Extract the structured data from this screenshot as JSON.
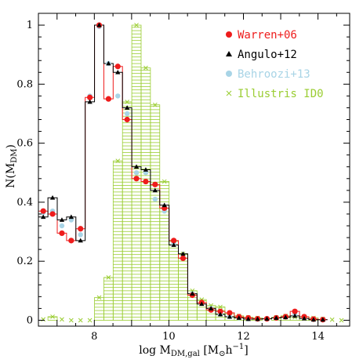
{
  "chart_data": {
    "type": "line",
    "xlabel": {
      "prefix": "log  M",
      "sub": "DM,gal",
      "bracket_open": "  [M",
      "sun_sub": "⊙",
      "h": "h",
      "h_sup": "−1",
      "bracket_close": "]"
    },
    "ylabel": {
      "prefix": "N(M",
      "sub": "DM",
      "suffix": ")"
    },
    "xlim": [
      6.5,
      14.85
    ],
    "ylim": [
      -0.02,
      1.04
    ],
    "xticks": [
      8,
      10,
      12,
      14
    ],
    "xtick_labels": [
      "8",
      "10",
      "12",
      "14"
    ],
    "yticks": [
      0,
      0.2,
      0.4,
      0.6,
      0.8,
      1
    ],
    "ytick_labels": [
      "0",
      "0.2",
      "0.4",
      "0.6",
      "0.8",
      "1"
    ],
    "legend_position": "top-right",
    "colors": {
      "warren": "#ee1c1c",
      "angulo": "#000000",
      "behroozi": "#a8d4e6",
      "illustris": "#9acd32"
    },
    "series": [
      {
        "name": "Warren+06",
        "marker": "circle",
        "x": [
          6.63,
          6.88,
          7.13,
          7.38,
          7.63,
          7.88,
          8.13,
          8.38,
          8.63,
          8.88,
          9.13,
          9.38,
          9.63,
          9.88,
          10.13,
          10.38,
          10.63,
          10.88,
          11.13,
          11.38,
          11.63,
          11.88,
          12.13,
          12.38,
          12.63,
          12.88,
          13.13,
          13.38,
          13.63,
          13.88,
          14.13
        ],
        "y": [
          0.37,
          0.36,
          0.295,
          0.27,
          0.31,
          0.755,
          1.0,
          0.75,
          0.86,
          0.68,
          0.48,
          0.47,
          0.46,
          0.38,
          0.27,
          0.21,
          0.085,
          0.06,
          0.035,
          0.03,
          0.025,
          0.012,
          0.008,
          0.005,
          0.005,
          0.008,
          0.012,
          0.03,
          0.012,
          0.004,
          0.002
        ]
      },
      {
        "name": "Angulo+12",
        "marker": "triangle",
        "x": [
          6.63,
          6.88,
          7.13,
          7.38,
          7.63,
          7.88,
          8.13,
          8.38,
          8.63,
          8.88,
          9.13,
          9.38,
          9.63,
          9.88,
          10.13,
          10.38,
          10.63,
          10.88,
          11.13,
          11.38,
          11.63,
          11.88,
          12.13,
          12.38,
          12.63,
          12.88,
          13.13,
          13.38,
          13.63,
          13.88,
          14.13
        ],
        "y": [
          0.35,
          0.415,
          0.34,
          0.35,
          0.27,
          0.74,
          1.0,
          0.87,
          0.84,
          0.72,
          0.52,
          0.51,
          0.44,
          0.39,
          0.255,
          0.225,
          0.09,
          0.055,
          0.04,
          0.02,
          0.012,
          0.008,
          0.004,
          0.004,
          0.005,
          0.008,
          0.01,
          0.015,
          0.006,
          0.002,
          0.002
        ]
      },
      {
        "name": "Behroozi+13",
        "marker": "circle",
        "x": [
          6.63,
          6.88,
          7.13,
          7.38,
          7.63,
          7.88,
          8.13,
          8.38,
          8.63,
          8.88,
          9.13,
          9.38,
          9.63,
          9.88,
          10.13,
          10.38,
          10.63,
          10.88,
          11.13,
          11.38,
          11.63,
          11.88,
          12.13,
          12.38,
          12.63,
          12.88,
          13.13,
          13.38,
          13.63,
          13.88,
          14.13
        ],
        "y": [
          0.365,
          0.37,
          0.32,
          0.34,
          0.29,
          0.76,
          0.995,
          0.87,
          0.76,
          0.7,
          0.5,
          0.5,
          0.41,
          0.37,
          0.26,
          0.21,
          0.09,
          0.06,
          0.04,
          0.02,
          0.012,
          0.008,
          0.005,
          0.004,
          0.005,
          0.008,
          0.012,
          0.02,
          0.008,
          0.003,
          0.002
        ]
      },
      {
        "name": "Illustris ID0",
        "marker": "x",
        "histogram": true,
        "x": [
          6.63,
          6.88,
          7.13,
          7.38,
          7.63,
          7.88,
          8.13,
          8.38,
          8.63,
          8.88,
          9.13,
          9.38,
          9.63,
          9.88,
          10.13,
          10.38,
          10.63,
          10.88,
          11.13,
          11.38,
          11.63,
          11.88,
          12.13,
          12.38,
          12.63,
          12.88,
          13.13,
          13.38,
          13.63,
          13.88,
          14.13,
          14.38,
          14.63
        ],
        "y": [
          0.003,
          0.012,
          0.003,
          0.0,
          0.0,
          0.0,
          0.077,
          0.145,
          0.54,
          0.74,
          1.0,
          0.855,
          0.73,
          0.47,
          0.27,
          0.225,
          0.1,
          0.07,
          0.05,
          0.045,
          0.025,
          0.015,
          0.01,
          0.008,
          0.005,
          0.01,
          0.015,
          0.01,
          0.012,
          0.008,
          0.005,
          0.002,
          0.0
        ]
      }
    ]
  }
}
